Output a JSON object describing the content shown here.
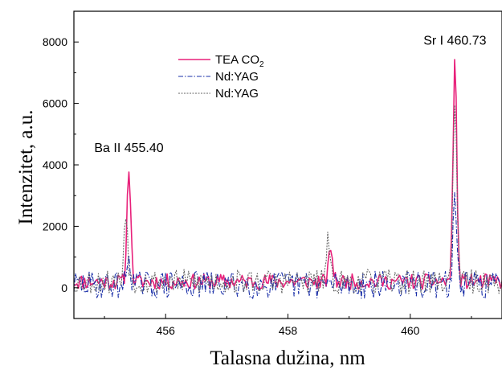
{
  "chart_data": {
    "type": "line",
    "title": "",
    "xlabel": "Talasna dužina, nm",
    "ylabel": "Intenzitet,  a.u.",
    "xlim": [
      454.5,
      461.5
    ],
    "ylim": [
      -1000,
      9000
    ],
    "xticks": [
      456,
      458,
      460
    ],
    "xtick_labels": [
      "456",
      "458",
      "460"
    ],
    "yticks": [
      0,
      2000,
      4000,
      6000,
      8000
    ],
    "ytick_labels": [
      "0",
      "2000",
      "4000",
      "6000",
      "8000"
    ],
    "grid": false,
    "legend_position": "top-center",
    "annotations": [
      {
        "text": "Ba II 455.40",
        "x": 455.4,
        "y": 4000
      },
      {
        "text": "Sr I 460.73",
        "x": 460.73,
        "y": 7500
      }
    ],
    "series": [
      {
        "name": "TEA CO",
        "name_subscript": "2",
        "color": "#e8207a",
        "style": "solid",
        "peaks": [
          {
            "x": 455.4,
            "y": 4000
          },
          {
            "x": 458.7,
            "y": 1350
          },
          {
            "x": 460.73,
            "y": 7500
          }
        ],
        "baseline_mean": 200,
        "noise_amplitude": 250
      },
      {
        "name": "Nd:YAG",
        "color": "#1a2fa8",
        "style": "dash-dot",
        "peaks": [
          {
            "x": 455.4,
            "y": 1100
          },
          {
            "x": 460.73,
            "y": 2900
          }
        ],
        "baseline_mean": 100,
        "noise_amplitude": 450
      },
      {
        "name": "Nd:YAG",
        "color": "#666666",
        "style": "dotted",
        "peaks": [
          {
            "x": 455.35,
            "y": 2600
          },
          {
            "x": 458.65,
            "y": 1450
          },
          {
            "x": 460.73,
            "y": 6400
          }
        ],
        "baseline_mean": 200,
        "noise_amplitude": 400
      }
    ]
  }
}
